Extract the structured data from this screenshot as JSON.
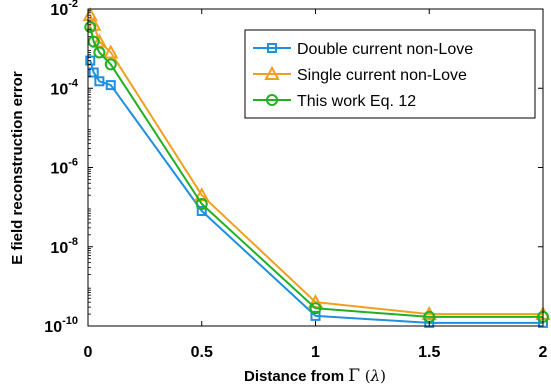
{
  "chart_data": {
    "type": "line",
    "xlabel": {
      "prefix": "Distance from ",
      "symbol": "Γ",
      "unit_open": " (",
      "unit_symbol": "λ",
      "unit_close": ")"
    },
    "ylabel": "E field reconstruction error",
    "xlim": [
      0,
      2
    ],
    "ylim_log10": [
      -10,
      -2
    ],
    "yscale": "log",
    "grid": false,
    "legend_position": "top-right",
    "x_ticks": [
      {
        "value": 0,
        "label": "0"
      },
      {
        "value": 0.5,
        "label": "0.5"
      },
      {
        "value": 1,
        "label": "1"
      },
      {
        "value": 1.5,
        "label": "1.5"
      },
      {
        "value": 2,
        "label": "2"
      }
    ],
    "y_ticks": [
      {
        "exp": -10,
        "base": "10",
        "sup": "-10"
      },
      {
        "exp": -8,
        "base": "10",
        "sup": "-8"
      },
      {
        "exp": -6,
        "base": "10",
        "sup": "-6"
      },
      {
        "exp": -4,
        "base": "10",
        "sup": "-4"
      },
      {
        "exp": -2,
        "base": "10",
        "sup": "-2"
      }
    ],
    "series": [
      {
        "name": "Double current non-Love",
        "color": "#1f8fe0",
        "marker": "square",
        "x": [
          0.01,
          0.025,
          0.05,
          0.1,
          0.5,
          1,
          1.5,
          2
        ],
        "y": [
          0.0005,
          0.00025,
          0.00015,
          0.00012,
          8e-08,
          1.8e-10,
          1.2e-10,
          1.2e-10
        ]
      },
      {
        "name": "Single current non-Love",
        "color": "#f0a020",
        "marker": "triangle",
        "x": [
          0.01,
          0.025,
          0.05,
          0.1,
          0.5,
          1,
          1.5,
          2
        ],
        "y": [
          0.007,
          0.004,
          0.0015,
          0.0008,
          2e-07,
          4e-10,
          2e-10,
          2e-10
        ]
      },
      {
        "name": "This work Eq. 12",
        "color": "#20b020",
        "marker": "circle",
        "x": [
          0.01,
          0.025,
          0.05,
          0.1,
          0.5,
          1,
          1.5,
          2
        ],
        "y": [
          0.0035,
          0.0015,
          0.0008,
          0.0004,
          1.2e-07,
          2.8e-10,
          1.7e-10,
          1.7e-10
        ]
      }
    ]
  }
}
